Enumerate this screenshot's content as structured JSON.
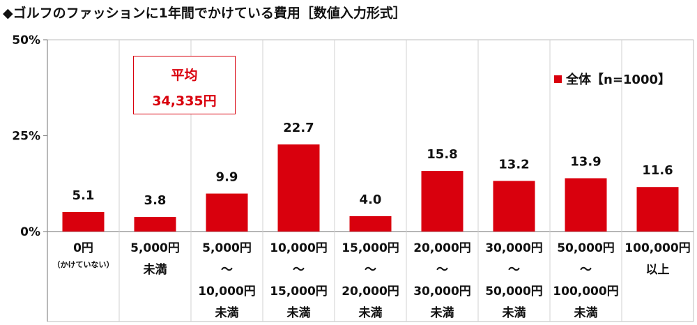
{
  "title": "◆ゴルフのファッションに1年間でかけている費用［数値入力形式］",
  "average_box": {
    "label": "平均",
    "value": "34,335円"
  },
  "legend": {
    "label": "全体【n=1000】",
    "color": "#d9000d"
  },
  "chart_data": {
    "type": "bar",
    "title": "◆ゴルフのファッションに1年間でかけている費用［数値入力形式］",
    "ylim": [
      0,
      50
    ],
    "yticks": [
      "0%",
      "25%",
      "50%"
    ],
    "ytick_values": [
      0,
      25,
      50
    ],
    "categories": [
      {
        "lines": [
          "0円"
        ],
        "note": "（かけていない）"
      },
      {
        "lines": [
          "5,000円",
          "未満"
        ]
      },
      {
        "lines": [
          "5,000円",
          "～",
          "10,000円",
          "未満"
        ]
      },
      {
        "lines": [
          "10,000円",
          "～",
          "15,000円",
          "未満"
        ]
      },
      {
        "lines": [
          "15,000円",
          "～",
          "20,000円",
          "未満"
        ]
      },
      {
        "lines": [
          "20,000円",
          "～",
          "30,000円",
          "未満"
        ]
      },
      {
        "lines": [
          "30,000円",
          "～",
          "50,000円",
          "未満"
        ]
      },
      {
        "lines": [
          "50,000円",
          "～",
          "100,000円",
          "未満"
        ]
      },
      {
        "lines": [
          "100,000円",
          "以上"
        ]
      }
    ],
    "series": [
      {
        "name": "全体【n=1000】",
        "values": [
          5.1,
          3.8,
          9.9,
          22.7,
          4.0,
          15.8,
          13.2,
          13.9,
          11.6
        ],
        "labels": [
          "5.1",
          "3.8",
          "9.9",
          "22.7",
          "4.0",
          "15.8",
          "13.2",
          "13.9",
          "11.6"
        ]
      }
    ],
    "bar_color": "#d9000d",
    "grid": false
  }
}
